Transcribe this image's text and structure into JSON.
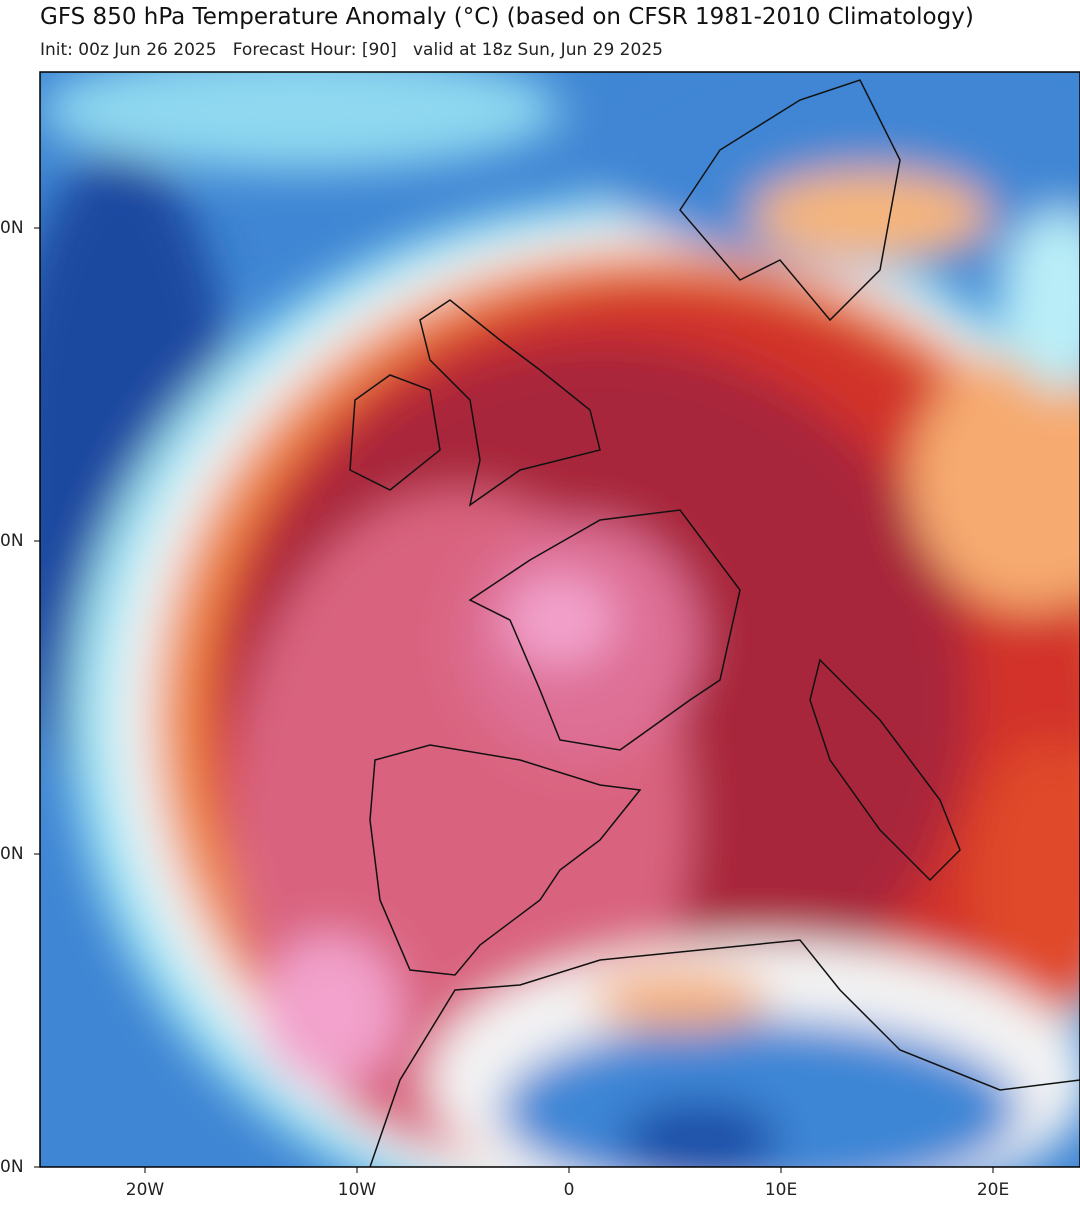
{
  "header": {
    "title": "GFS 850 hPa Temperature Anomaly (°C) (based on CFSR 1981-2010 Climatology)",
    "subtitle": "Init: 00z Jun 26 2025   Forecast Hour: [90]   valid at 18z Sun, Jun 29 2025"
  },
  "map": {
    "lat_labels": [
      "0N",
      "0N",
      "0N",
      "0N"
    ],
    "lon_labels": [
      "20W",
      "10W",
      "0",
      "10E",
      "20E"
    ]
  }
}
